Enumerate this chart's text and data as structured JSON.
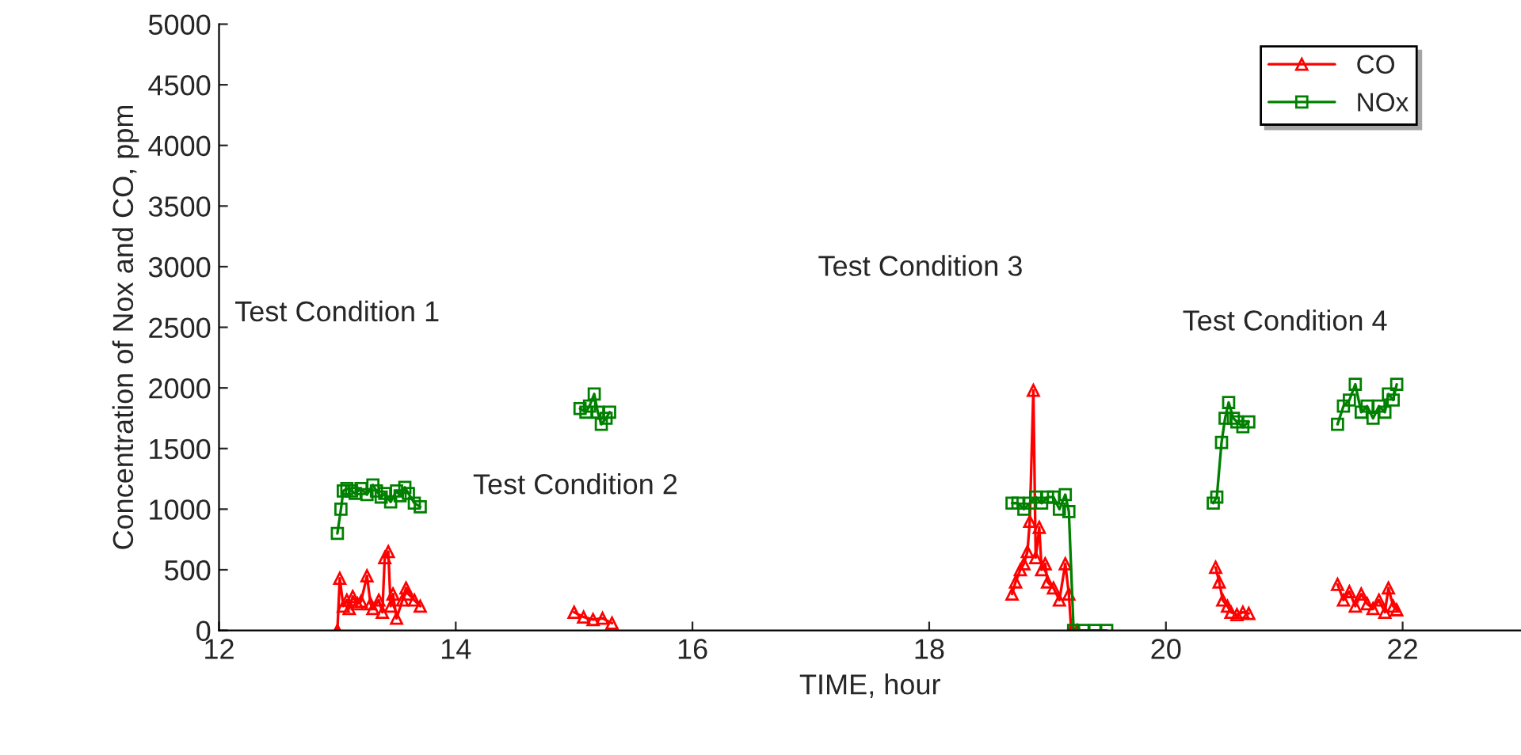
{
  "chart_data": {
    "type": "line",
    "xlabel": "TIME, hour",
    "ylabel": "Concentration of Nox and CO, ppm",
    "xlim": [
      12,
      23
    ],
    "xticks": [
      12,
      14,
      16,
      18,
      20,
      22
    ],
    "ylim": [
      0,
      5000
    ],
    "yticks": [
      0,
      500,
      1000,
      1500,
      2000,
      2500,
      3000,
      3500,
      4000,
      4500,
      5000
    ],
    "legend": "top right",
    "grid": false,
    "line_style": "solid",
    "annotations": [
      "Test Condition 1",
      "Test Condition 2",
      "Test Condition 3",
      "Test Condition 4"
    ],
    "series": [
      {
        "name": "CO",
        "color": "#ff0000",
        "marker": "triangle",
        "x": [
          13.0,
          13.02,
          13.05,
          13.08,
          13.1,
          13.13,
          13.17,
          13.2,
          13.25,
          13.28,
          13.3,
          13.35,
          13.38,
          13.4,
          13.43,
          13.45,
          13.47,
          13.5,
          13.55,
          13.58,
          13.6,
          13.65,
          13.7,
          14.4,
          15.0,
          15.08,
          15.16,
          15.24,
          15.32,
          17.0,
          18.7,
          18.73,
          18.77,
          18.8,
          18.83,
          18.85,
          18.88,
          18.9,
          18.93,
          18.95,
          18.98,
          19.0,
          19.05,
          19.1,
          19.15,
          19.18,
          19.2,
          19.25,
          19.8,
          20.42,
          20.45,
          20.48,
          20.52,
          20.55,
          20.6,
          20.65,
          20.7,
          21.1,
          21.45,
          21.5,
          21.55,
          21.6,
          21.65,
          21.7,
          21.75,
          21.8,
          21.85,
          21.88,
          21.92,
          21.95
        ],
        "values": [
          0,
          430,
          200,
          250,
          180,
          280,
          220,
          240,
          450,
          220,
          180,
          250,
          150,
          600,
          650,
          200,
          300,
          100,
          250,
          350,
          300,
          250,
          200,
          null,
          150,
          110,
          90,
          100,
          60,
          null,
          300,
          400,
          500,
          550,
          650,
          900,
          1980,
          600,
          850,
          500,
          550,
          400,
          350,
          250,
          550,
          300,
          0,
          0,
          null,
          520,
          400,
          250,
          200,
          150,
          130,
          150,
          140,
          null,
          380,
          250,
          320,
          200,
          300,
          220,
          180,
          250,
          150,
          350,
          200,
          170
        ]
      },
      {
        "name": "NOx",
        "color": "#008000",
        "marker": "square",
        "x": [
          13.0,
          13.03,
          13.05,
          13.08,
          13.12,
          13.15,
          13.2,
          13.25,
          13.3,
          13.33,
          13.37,
          13.4,
          13.45,
          13.5,
          13.53,
          13.57,
          13.6,
          13.65,
          13.7,
          14.4,
          15.05,
          15.1,
          15.13,
          15.17,
          15.2,
          15.23,
          15.27,
          15.3,
          17.0,
          18.7,
          18.75,
          18.8,
          18.85,
          18.9,
          18.95,
          19.0,
          19.05,
          19.1,
          19.15,
          19.18,
          19.22,
          19.3,
          19.4,
          19.5,
          19.8,
          20.4,
          20.43,
          20.47,
          20.5,
          20.53,
          20.57,
          20.6,
          20.65,
          20.7,
          21.1,
          21.45,
          21.5,
          21.55,
          21.6,
          21.65,
          21.7,
          21.75,
          21.8,
          21.85,
          21.88,
          21.92,
          21.95
        ],
        "values": [
          800,
          1000,
          1150,
          1170,
          1150,
          1130,
          1170,
          1120,
          1200,
          1150,
          1100,
          1130,
          1060,
          1150,
          1110,
          1180,
          1130,
          1050,
          1020,
          null,
          1830,
          1800,
          1850,
          1950,
          1800,
          1700,
          1750,
          1800,
          null,
          1050,
          1050,
          1000,
          1050,
          1100,
          1050,
          1100,
          1100,
          1000,
          1120,
          980,
          0,
          0,
          0,
          0,
          null,
          1050,
          1100,
          1550,
          1750,
          1880,
          1750,
          1720,
          1680,
          1720,
          null,
          1700,
          1850,
          1900,
          2030,
          1800,
          1850,
          1750,
          1850,
          1800,
          1950,
          1900,
          2030
        ]
      }
    ]
  }
}
